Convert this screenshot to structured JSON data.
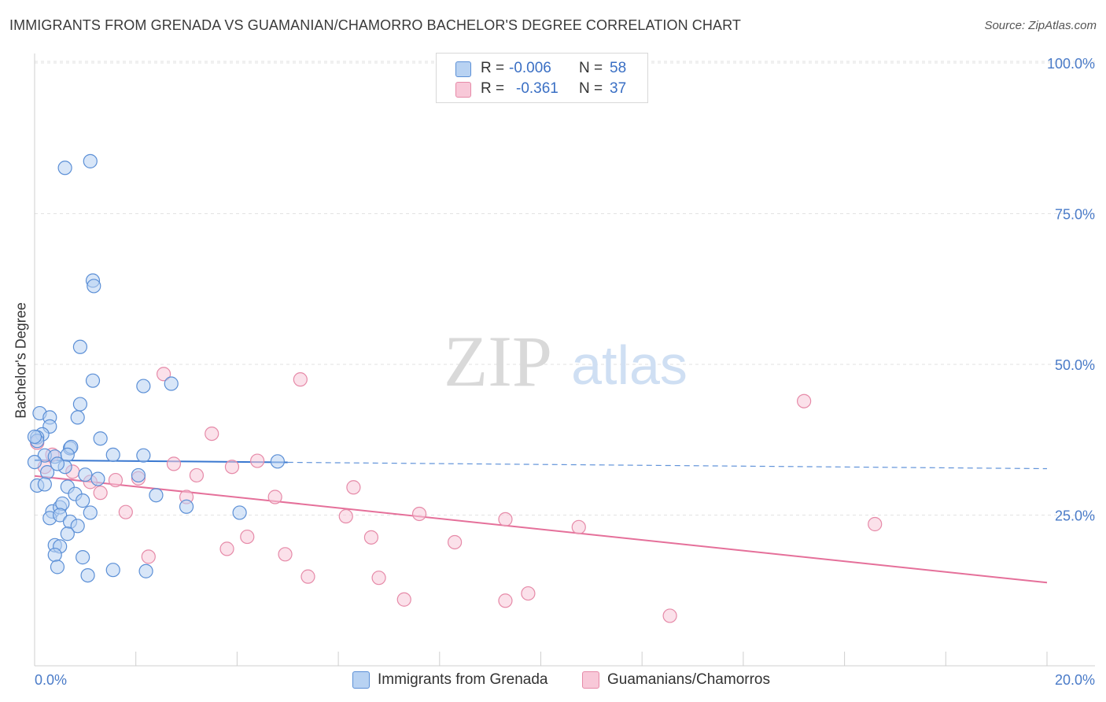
{
  "header": {
    "title": "IMMIGRANTS FROM GRENADA VS GUAMANIAN/CHAMORRO BACHELOR'S DEGREE CORRELATION CHART",
    "source": "Source: ZipAtlas.com"
  },
  "watermark": {
    "zip": "ZIP",
    "atlas": "atlas"
  },
  "legend": {
    "series1": {
      "r_label": "R =",
      "r_value": "-0.006",
      "n_label": "N =",
      "n_value": "58"
    },
    "series2": {
      "r_label": "R =",
      "r_value": "-0.361",
      "n_label": "N =",
      "n_value": "37"
    }
  },
  "bottom_legend": {
    "series1": "Immigrants from Grenada",
    "series2": "Guamanians/Chamorros"
  },
  "colors": {
    "blue_fill": "#b8d2f2",
    "blue_stroke": "#5b8fd6",
    "blue_line": "#3a78d0",
    "pink_fill": "#f8c8d8",
    "pink_stroke": "#e68aa8",
    "pink_line": "#e5709a",
    "tick_text": "#4a7bc8"
  },
  "chart_data": {
    "type": "scatter",
    "title": "IMMIGRANTS FROM GRENADA VS GUAMANIAN/CHAMORRO BACHELOR'S DEGREE CORRELATION CHART",
    "xlabel": "",
    "ylabel": "Bachelor's Degree",
    "xlim": [
      0,
      20
    ],
    "ylim": [
      0,
      100
    ],
    "x_tick_labels": [
      "0.0%",
      "20.0%"
    ],
    "y_ticks": [
      25,
      50,
      75,
      100
    ],
    "y_tick_labels": [
      "25.0%",
      "50.0%",
      "75.0%",
      "100.0%"
    ],
    "grid": true,
    "legend_position": "top-center",
    "series": [
      {
        "name": "Immigrants from Grenada",
        "R": -0.006,
        "N": 58,
        "trend": {
          "solid_x": [
            0,
            5.0
          ],
          "dashed_x": [
            5.0,
            20
          ],
          "y_at_0": 34.1,
          "y_at_20": 32.7
        },
        "points": [
          [
            0.6,
            82.6
          ],
          [
            1.1,
            83.7
          ],
          [
            1.15,
            63.9
          ],
          [
            1.17,
            63.0
          ],
          [
            0.9,
            52.9
          ],
          [
            1.15,
            47.3
          ],
          [
            2.15,
            46.4
          ],
          [
            2.7,
            46.8
          ],
          [
            0.1,
            41.9
          ],
          [
            0.3,
            41.2
          ],
          [
            0.85,
            41.2
          ],
          [
            0.9,
            43.4
          ],
          [
            0.3,
            39.7
          ],
          [
            0.15,
            38.4
          ],
          [
            0.05,
            37.9
          ],
          [
            0.05,
            37.3
          ],
          [
            0.7,
            36.1
          ],
          [
            0.72,
            36.3
          ],
          [
            1.3,
            37.7
          ],
          [
            0.2,
            34.9
          ],
          [
            0.4,
            34.7
          ],
          [
            0.65,
            35.0
          ],
          [
            1.55,
            35.0
          ],
          [
            2.15,
            34.9
          ],
          [
            4.8,
            33.9
          ],
          [
            0.0,
            33.8
          ],
          [
            0.6,
            33.0
          ],
          [
            0.25,
            32.1
          ],
          [
            0.45,
            33.5
          ],
          [
            1.0,
            31.7
          ],
          [
            1.25,
            31.0
          ],
          [
            2.05,
            31.6
          ],
          [
            0.05,
            29.9
          ],
          [
            0.2,
            30.1
          ],
          [
            0.65,
            29.7
          ],
          [
            0.8,
            28.5
          ],
          [
            0.95,
            27.4
          ],
          [
            2.4,
            28.3
          ],
          [
            3.0,
            26.4
          ],
          [
            4.05,
            25.4
          ],
          [
            0.35,
            25.6
          ],
          [
            0.3,
            24.5
          ],
          [
            0.5,
            26.3
          ],
          [
            0.55,
            26.9
          ],
          [
            0.5,
            25.0
          ],
          [
            1.1,
            25.4
          ],
          [
            0.7,
            23.9
          ],
          [
            0.85,
            23.2
          ],
          [
            0.65,
            21.9
          ],
          [
            0.4,
            20.0
          ],
          [
            0.5,
            19.8
          ],
          [
            0.4,
            18.4
          ],
          [
            0.95,
            18.0
          ],
          [
            0.45,
            16.4
          ],
          [
            1.55,
            15.9
          ],
          [
            2.2,
            15.7
          ],
          [
            1.05,
            15.0
          ],
          [
            0.0,
            38.0
          ]
        ]
      },
      {
        "name": "Guamanians/Chamorros",
        "R": -0.361,
        "N": 37,
        "trend": {
          "solid_x": [
            0,
            20
          ],
          "y_at_0": 31.5,
          "y_at_20": 13.8
        },
        "points": [
          [
            0.05,
            37.0
          ],
          [
            2.55,
            48.4
          ],
          [
            5.25,
            47.5
          ],
          [
            15.2,
            43.9
          ],
          [
            3.5,
            38.5
          ],
          [
            0.35,
            35.0
          ],
          [
            4.4,
            34.0
          ],
          [
            2.75,
            33.5
          ],
          [
            3.9,
            33.0
          ],
          [
            0.2,
            33.0
          ],
          [
            0.75,
            32.2
          ],
          [
            3.2,
            31.6
          ],
          [
            2.05,
            31.1
          ],
          [
            1.6,
            30.8
          ],
          [
            1.1,
            30.5
          ],
          [
            6.3,
            29.6
          ],
          [
            1.3,
            28.7
          ],
          [
            3.0,
            28.0
          ],
          [
            4.75,
            28.0
          ],
          [
            1.8,
            25.5
          ],
          [
            6.15,
            24.8
          ],
          [
            7.6,
            25.2
          ],
          [
            9.3,
            24.3
          ],
          [
            10.75,
            23.0
          ],
          [
            16.6,
            23.5
          ],
          [
            4.2,
            21.4
          ],
          [
            6.65,
            21.3
          ],
          [
            8.3,
            20.5
          ],
          [
            3.8,
            19.4
          ],
          [
            4.95,
            18.5
          ],
          [
            2.25,
            18.1
          ],
          [
            5.4,
            14.8
          ],
          [
            6.8,
            14.6
          ],
          [
            7.3,
            11.0
          ],
          [
            9.3,
            10.8
          ],
          [
            9.75,
            12.0
          ],
          [
            12.55,
            8.3
          ]
        ]
      }
    ]
  }
}
